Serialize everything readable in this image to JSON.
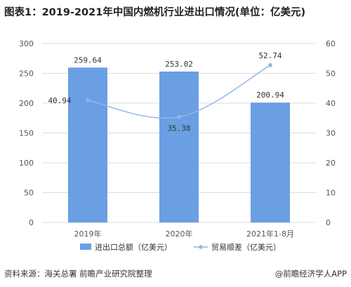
{
  "title": "图表1：2019-2021年中国内燃机行业进出口情况(单位：亿美元)",
  "footer": {
    "source": "资料来源：海关总署 前瞻产业研究院整理",
    "brand": "@前瞻经济学人APP"
  },
  "colors": {
    "bar": "#6a9fe3",
    "line": "#8fb6e6",
    "grid": "#dcdcdc",
    "axis_text": "#555555"
  },
  "chart_data": {
    "type": "bar",
    "categories": [
      "2019年",
      "2020年",
      "2021年1-8月"
    ],
    "series": [
      {
        "name": "进出口总额（亿美元）",
        "type": "bar",
        "axis": "left",
        "values": [
          259.64,
          253.02,
          200.94
        ],
        "labels": [
          "259.64",
          "253.02",
          "200.94"
        ]
      },
      {
        "name": "贸易顺差（亿美元）",
        "type": "line",
        "axis": "right",
        "values": [
          40.94,
          35.38,
          52.74
        ],
        "labels": [
          "40.94",
          "35.38",
          "52.74"
        ]
      }
    ],
    "left_axis": {
      "min": 0,
      "max": 300,
      "ticks": [
        "0",
        "50",
        "100",
        "150",
        "200",
        "250",
        "300"
      ]
    },
    "right_axis": {
      "min": 0,
      "max": 60,
      "ticks": [
        "0",
        "10",
        "20",
        "30",
        "40",
        "50",
        "60"
      ]
    },
    "grid": true,
    "legend_position": "bottom"
  }
}
